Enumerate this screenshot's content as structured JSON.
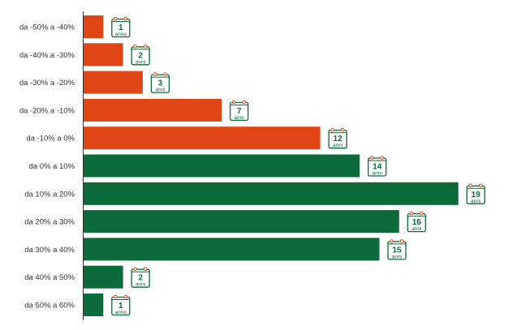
{
  "chart_data": {
    "type": "bar",
    "orientation": "horizontal",
    "categories": [
      "da -50% a -40%",
      "da -40% a -30%",
      "da -30% a -20%",
      "da -20% a -10%",
      "da -10% a 0%",
      "da 0% a 10%",
      "da 10% a 20%",
      "da 20% a 30%",
      "da 30% a 40%",
      "da 40% a 50%",
      "da 50% a 60%"
    ],
    "values": [
      1,
      2,
      3,
      7,
      12,
      14,
      19,
      16,
      15,
      2,
      1
    ],
    "data_labels": [
      {
        "num": "1",
        "unit": "anno"
      },
      {
        "num": "2",
        "unit": "anni"
      },
      {
        "num": "3",
        "unit": "anni"
      },
      {
        "num": "7",
        "unit": "anni"
      },
      {
        "num": "12",
        "unit": "anni"
      },
      {
        "num": "14",
        "unit": "anni"
      },
      {
        "num": "19",
        "unit": "anni"
      },
      {
        "num": "16",
        "unit": "anni"
      },
      {
        "num": "15",
        "unit": "anni"
      },
      {
        "num": "2",
        "unit": "anni"
      },
      {
        "num": "1",
        "unit": "anno"
      }
    ],
    "colors": {
      "negative": "#e04515",
      "positive": "#0b6b3a",
      "calendar_icon": "calendar-icon",
      "calendar_rings": "#e04515",
      "calendar_border": "#0b6b3a"
    },
    "title": "",
    "xlabel": "",
    "ylabel": "",
    "grid": false,
    "legend": "none"
  }
}
